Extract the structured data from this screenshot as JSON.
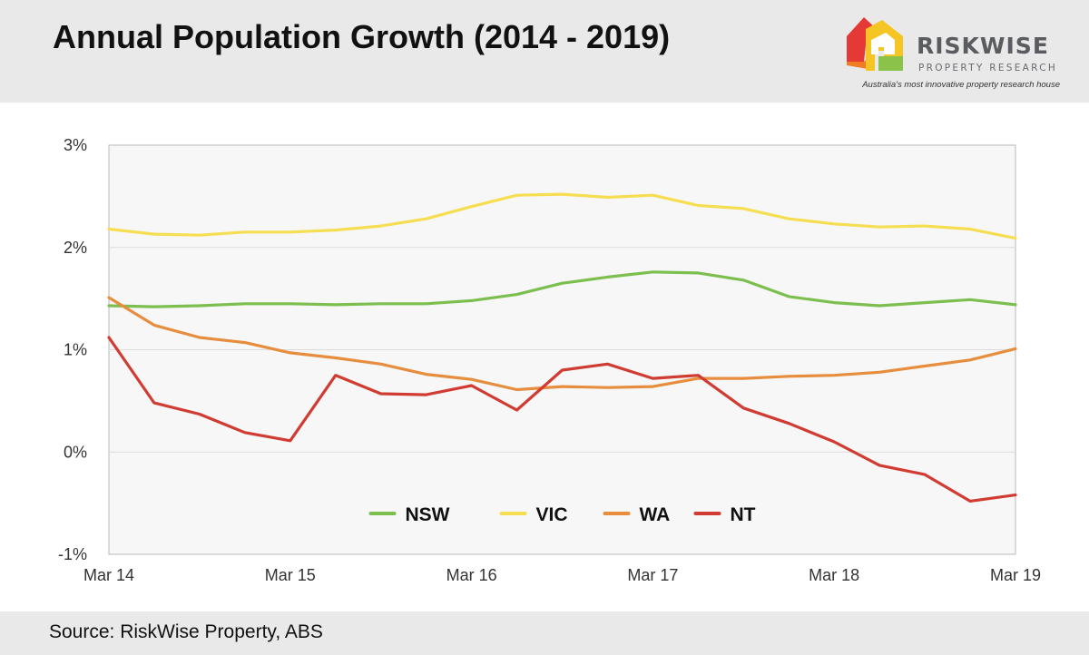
{
  "header": {
    "title": "Annual Population Growth (2014 - 2019)",
    "logo": {
      "name": "RISKWISE",
      "subtitle": "PROPERTY RESEARCH",
      "tagline": "Australia's most innovative property research house",
      "colors": [
        "#e53935",
        "#f5a623",
        "#f07c24",
        "#8bc34a"
      ]
    }
  },
  "footer": {
    "source": "Source: RiskWise Property, ABS"
  },
  "chart_data": {
    "type": "line",
    "title": "Annual Population Growth (2014 - 2019)",
    "xlabel": "",
    "ylabel": "",
    "x_tick_labels": [
      "Mar 14",
      "Mar 15",
      "Mar 16",
      "Mar 17",
      "Mar 18",
      "Mar 19"
    ],
    "y_tick_labels": [
      "3%",
      "2%",
      "1%",
      "0%",
      "-1%"
    ],
    "ylim": [
      -1,
      3
    ],
    "y_unit": "%",
    "grid": true,
    "legend_position": "bottom-center",
    "plot_background": "#f7f7f7",
    "x": [
      "Mar 14",
      "Jun 14",
      "Sep 14",
      "Dec 14",
      "Mar 15",
      "Jun 15",
      "Sep 15",
      "Dec 15",
      "Mar 16",
      "Jun 16",
      "Sep 16",
      "Dec 16",
      "Mar 17",
      "Jun 17",
      "Sep 17",
      "Dec 17",
      "Mar 18",
      "Jun 18",
      "Sep 18",
      "Dec 18",
      "Mar 19"
    ],
    "series": [
      {
        "name": "NSW",
        "color": "#7cbf4f",
        "values": [
          1.43,
          1.42,
          1.43,
          1.45,
          1.45,
          1.44,
          1.45,
          1.45,
          1.48,
          1.54,
          1.65,
          1.71,
          1.76,
          1.75,
          1.68,
          1.52,
          1.46,
          1.43,
          1.46,
          1.49,
          1.44
        ]
      },
      {
        "name": "VIC",
        "color": "#f6de52",
        "values": [
          2.18,
          2.13,
          2.12,
          2.15,
          2.15,
          2.17,
          2.21,
          2.28,
          2.4,
          2.51,
          2.52,
          2.49,
          2.51,
          2.41,
          2.38,
          2.28,
          2.23,
          2.2,
          2.21,
          2.18,
          2.09
        ]
      },
      {
        "name": "WA",
        "color": "#e68e3e",
        "values": [
          1.51,
          1.24,
          1.12,
          1.07,
          0.97,
          0.92,
          0.86,
          0.76,
          0.71,
          0.61,
          0.64,
          0.63,
          0.64,
          0.72,
          0.72,
          0.74,
          0.75,
          0.78,
          0.84,
          0.9,
          1.01
        ]
      },
      {
        "name": "NT",
        "color": "#d03b32",
        "values": [
          1.12,
          0.48,
          0.37,
          0.19,
          0.11,
          0.75,
          0.57,
          0.56,
          0.65,
          0.41,
          0.8,
          0.86,
          0.72,
          0.75,
          0.43,
          0.28,
          0.1,
          -0.13,
          -0.22,
          -0.48,
          -0.42
        ]
      }
    ]
  }
}
